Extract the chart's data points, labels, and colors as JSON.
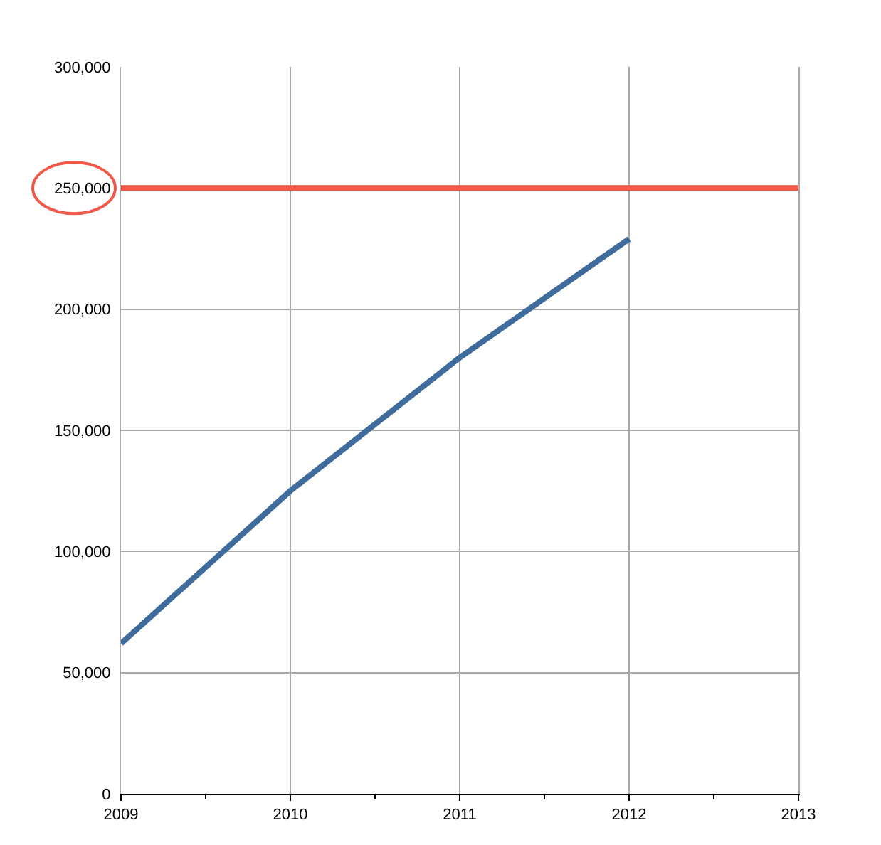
{
  "chart_data": {
    "type": "line",
    "x": [
      2009,
      2010,
      2011,
      2012
    ],
    "series": [
      {
        "color": "#3f6c9c",
        "values": [
          62000,
          125000,
          180000,
          229000
        ]
      }
    ],
    "xlim": [
      2009,
      2013
    ],
    "xticks": [
      2009,
      {
        "value": 2009.5,
        "label": null
      },
      2010,
      {
        "value": 2010.5,
        "label": null
      },
      2011,
      {
        "value": 2011.5,
        "label": null
      },
      2012,
      {
        "value": 2012.5,
        "label": null
      },
      2013
    ],
    "ylim": [
      0,
      300000
    ],
    "yticks": [
      0,
      {
        "value": 50000,
        "label": "50,000"
      },
      {
        "value": 100000,
        "label": "100,000"
      },
      {
        "value": 150000,
        "label": "150,000"
      },
      {
        "value": 200000,
        "label": "200,000"
      },
      {
        "value": 250000,
        "label": "250,000"
      },
      {
        "value": 300000,
        "label": "300,000"
      }
    ],
    "ref_lines": [
      {
        "axis": "y",
        "value": 250000,
        "color": "#f05a4b",
        "line_style": "solid"
      }
    ],
    "grid": true,
    "marker": "none",
    "line_style": "solid"
  }
}
